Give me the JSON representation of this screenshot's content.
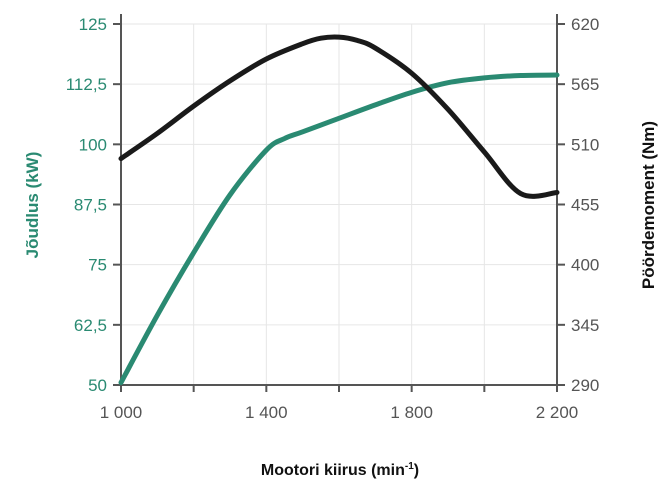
{
  "chart_data": {
    "type": "line",
    "xlabel": "Mootori kiirus (min",
    "xlabel_sup": "-1",
    "xlabel_close": ")",
    "ylabel_left": "Jõudlus (kW)",
    "ylabel_right": "Pöördemoment (Nm)",
    "xlim": [
      1000,
      2200
    ],
    "ylim_left": [
      50,
      125
    ],
    "ylim_right": [
      290,
      620
    ],
    "x_ticks": [
      1000,
      1200,
      1400,
      1600,
      1800,
      2000,
      2200
    ],
    "x_tick_labels": [
      {
        "x": 1000,
        "label": "1 000"
      },
      {
        "x": 1400,
        "label": "1 400"
      },
      {
        "x": 1800,
        "label": "1 800"
      },
      {
        "x": 2200,
        "label": "2 200"
      }
    ],
    "left_ticks": [
      {
        "v": 50,
        "label": "50"
      },
      {
        "v": 62.5,
        "label": "62,5"
      },
      {
        "v": 75,
        "label": "75"
      },
      {
        "v": 87.5,
        "label": "87,5"
      },
      {
        "v": 100,
        "label": "100"
      },
      {
        "v": 112.5,
        "label": "112,5"
      },
      {
        "v": 125,
        "label": "125"
      }
    ],
    "right_ticks": [
      {
        "v": 290,
        "label": "290"
      },
      {
        "v": 345,
        "label": "345"
      },
      {
        "v": 400,
        "label": "400"
      },
      {
        "v": 455,
        "label": "455"
      },
      {
        "v": 510,
        "label": "510"
      },
      {
        "v": 565,
        "label": "565"
      },
      {
        "v": 620,
        "label": "620"
      }
    ],
    "grid": true,
    "series": [
      {
        "axis": "left",
        "color": "#2a8a72",
        "x": [
          1000,
          1100,
          1200,
          1300,
          1400,
          1450,
          1500,
          1600,
          1700,
          1800,
          1900,
          2000,
          2100,
          2200
        ],
        "values": [
          50.5,
          64.5,
          77.5,
          89.5,
          98.8,
          101.2,
          102.6,
          105.4,
          108.2,
          110.8,
          112.8,
          113.8,
          114.3,
          114.4
        ]
      },
      {
        "axis": "right",
        "color": "#1a1a1a",
        "x": [
          1000,
          1100,
          1200,
          1300,
          1400,
          1500,
          1550,
          1600,
          1650,
          1700,
          1800,
          1900,
          2000,
          2100,
          2200
        ],
        "values": [
          497,
          520,
          545,
          568,
          588,
          602,
          607,
          608,
          605,
          598,
          575,
          542,
          503,
          465,
          466
        ]
      }
    ]
  }
}
